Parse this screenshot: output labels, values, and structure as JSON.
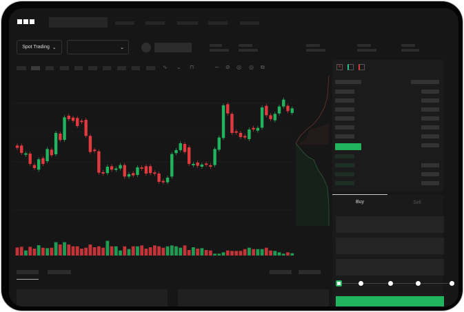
{
  "brand": {
    "logo": "OKX"
  },
  "toolbar": {
    "spot_trading_label": "Spot Trading"
  },
  "trade": {
    "tabs": [
      {
        "label": "Buy",
        "active": true
      },
      {
        "label": "Sell",
        "active": false
      }
    ],
    "slider_level": 0
  },
  "colors": {
    "up": "#22b35e",
    "down": "#e0393e",
    "bg": "#161616",
    "panel": "#1b1b1b"
  },
  "icons": [
    "chevron-down-icon",
    "indicator-icon",
    "line-icon",
    "draw-icon",
    "settings-icon",
    "fullscreen-icon",
    "orderbook-both-icon",
    "orderbook-bids-icon",
    "orderbook-asks-icon"
  ],
  "chart_data": {
    "type": "candlestick",
    "candles": [
      [
        250,
        260
      ],
      [
        250,
        282
      ],
      [
        288,
        284
      ],
      [
        285,
        330
      ],
      [
        335,
        348
      ],
      [
        355,
        310
      ],
      [
        305,
        330
      ],
      [
        318,
        265
      ],
      [
        268,
        292
      ],
      [
        288,
        195
      ],
      [
        198,
        226
      ],
      [
        225,
        127
      ],
      [
        120,
        135
      ],
      [
        128,
        142
      ],
      [
        130,
        165
      ],
      [
        142,
        148
      ],
      [
        138,
        208
      ],
      [
        208,
        278
      ],
      [
        268,
        272
      ],
      [
        275,
        368
      ],
      [
        366,
        372
      ],
      [
        370,
        342
      ],
      [
        340,
        355
      ],
      [
        355,
        350
      ],
      [
        350,
        335
      ],
      [
        335,
        385
      ],
      [
        385,
        375
      ],
      [
        370,
        380
      ],
      [
        378,
        345
      ],
      [
        345,
        350
      ],
      [
        340,
        372
      ],
      [
        340,
        370
      ],
      [
        367,
        370
      ],
      [
        372,
        408
      ],
      [
        404,
        410
      ],
      [
        410,
        390
      ],
      [
        385,
        287
      ],
      [
        283,
        270
      ],
      [
        270,
        240
      ],
      [
        243,
        278
      ],
      [
        258,
        330
      ],
      [
        336,
        330
      ],
      [
        324,
        338
      ],
      [
        342,
        333
      ],
      [
        328,
        330
      ],
      [
        336,
        341
      ],
      [
        335,
        265
      ],
      [
        268,
        215
      ],
      [
        217,
        75
      ],
      [
        70,
        110
      ],
      [
        112,
        195
      ],
      [
        188,
        193
      ],
      [
        195,
        213
      ],
      [
        208,
        215
      ],
      [
        222,
        180
      ],
      [
        173,
        180
      ],
      [
        185,
        173
      ],
      [
        172,
        84
      ],
      [
        77,
        118
      ],
      [
        118,
        135
      ],
      [
        140,
        112
      ],
      [
        110,
        80
      ],
      [
        80,
        50
      ],
      [
        77,
        100
      ],
      [
        108,
        88
      ]
    ],
    "volumes": [
      35,
      38,
      22,
      38,
      30,
      45,
      34,
      32,
      34,
      58,
      48,
      58,
      48,
      40,
      40,
      30,
      34,
      48,
      36,
      40,
      34,
      64,
      40,
      40,
      22,
      40,
      28,
      40,
      40,
      44,
      30,
      36,
      44,
      40,
      34,
      40,
      44,
      40,
      34,
      44,
      24,
      36,
      30,
      32,
      24,
      22,
      8,
      8,
      14,
      22,
      20,
      20,
      20,
      28,
      34,
      28,
      28,
      28,
      34,
      22,
      20,
      14,
      8,
      14,
      10
    ]
  }
}
